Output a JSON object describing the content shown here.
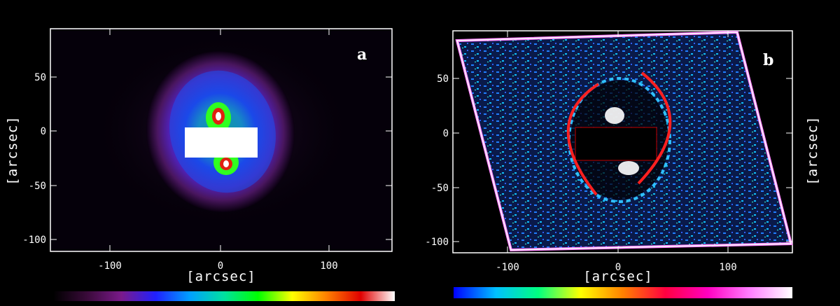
{
  "panels": [
    {
      "id": "a",
      "letter": "a",
      "xlabel": "[arcsec]",
      "ylabel": "[arcsec]",
      "xticks": [
        "-100",
        "0",
        "100"
      ],
      "yticks": [
        "50",
        "0",
        "-50",
        "-100"
      ]
    },
    {
      "id": "b",
      "letter": "b",
      "xlabel": "[arcsec]",
      "ylabel": "[arcsec]",
      "xticks": [
        "-100",
        "0",
        "100"
      ],
      "yticks": [
        "50",
        "0",
        "-50",
        "-100"
      ]
    }
  ],
  "colors": {
    "background": "#000000",
    "arc": "#ff2020",
    "colorbar_a": [
      "#000000",
      "#3a0a3a",
      "#7a1a8a",
      "#2020ff",
      "#00a0ff",
      "#00e0a0",
      "#00ff00",
      "#ffff00",
      "#ff8000",
      "#e00000",
      "#ffffff"
    ],
    "colorbar_b": [
      "#0000ff",
      "#00c0ff",
      "#00ff80",
      "#ffff00",
      "#ff8000",
      "#ff0040",
      "#ff00c0",
      "#ff80ff",
      "#ffffff"
    ]
  }
}
